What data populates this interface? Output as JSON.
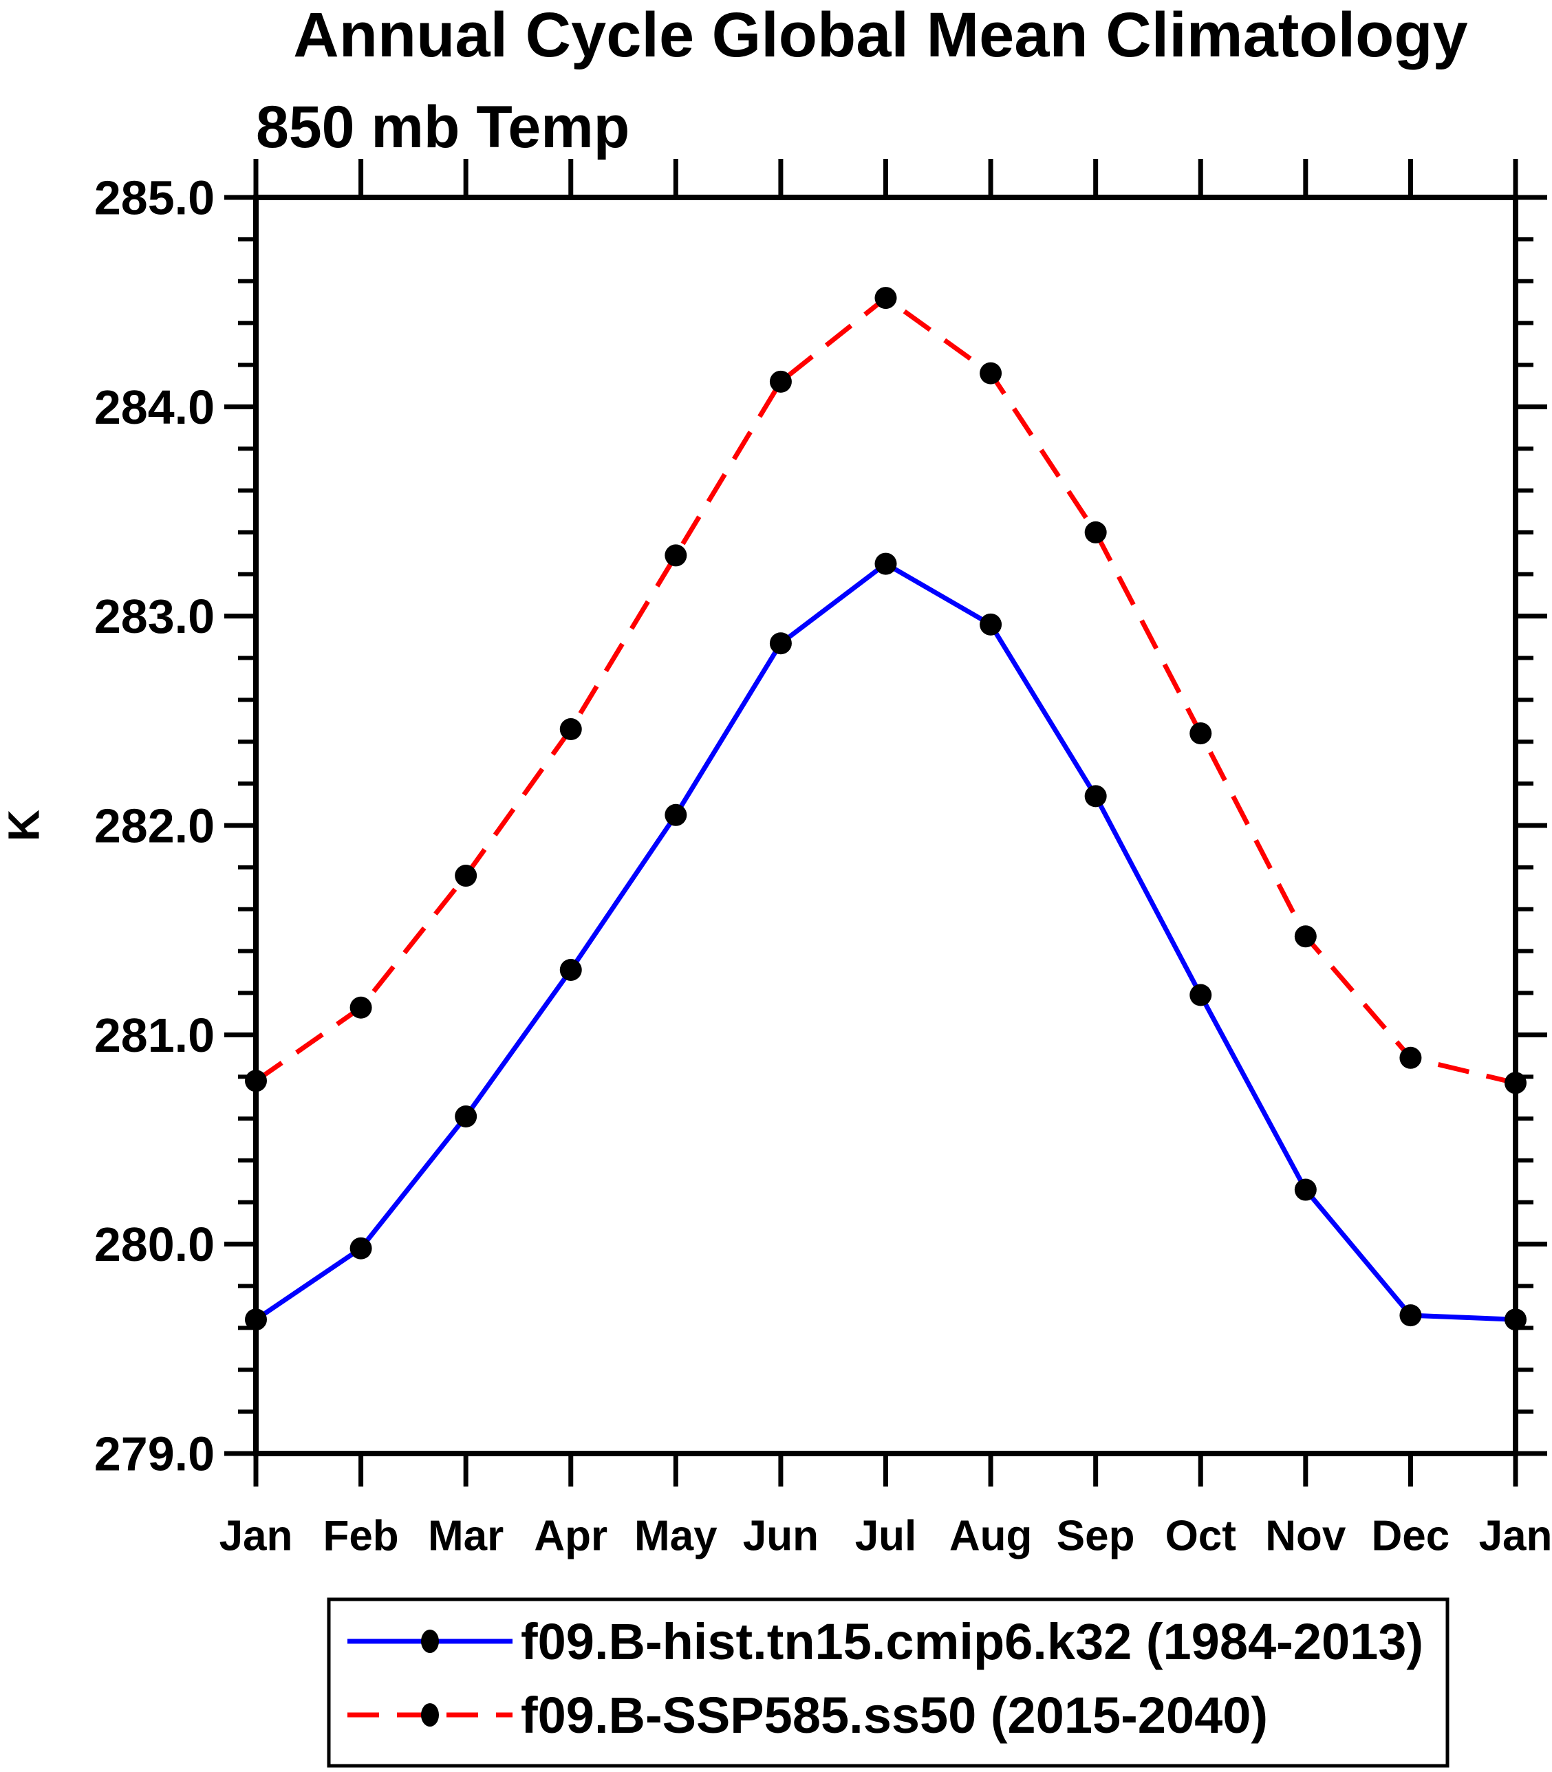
{
  "page": {
    "background": "#ffffff",
    "axis_color": "#000000",
    "marker_color": "#000000"
  },
  "chart_data": {
    "type": "line",
    "title": "Annual Cycle Global Mean Climatology",
    "subtitle": "850 mb Temp",
    "ylabel": "K",
    "xlabel": "",
    "categories": [
      "Jan",
      "Feb",
      "Mar",
      "Apr",
      "May",
      "Jun",
      "Jul",
      "Aug",
      "Sep",
      "Oct",
      "Nov",
      "Dec",
      "Jan"
    ],
    "ylim": [
      279.0,
      285.0
    ],
    "y_major_tick_step": 1.0,
    "y_minor_tick_step": 0.2,
    "y_tick_labels": [
      "285.0",
      "284.0",
      "283.0",
      "282.0",
      "281.0",
      "280.0",
      "279.0"
    ],
    "grid": false,
    "legend_position": "bottom",
    "series": [
      {
        "label": "f09.B-hist.tn15.cmip6.k32 (1984-2013)",
        "color": "#0000ff",
        "line_style": "solid",
        "marker": "filled-circle",
        "marker_color": "#000000",
        "values": [
          279.64,
          279.98,
          280.61,
          281.31,
          282.05,
          282.87,
          283.25,
          282.96,
          282.14,
          281.19,
          280.26,
          279.66,
          279.64
        ]
      },
      {
        "label": "f09.B-SSP585.ss50 (2015-2040)",
        "color": "#ff0000",
        "line_style": "dashed",
        "marker": "filled-circle",
        "marker_color": "#000000",
        "values": [
          280.78,
          281.13,
          281.76,
          282.46,
          283.29,
          284.12,
          284.52,
          284.16,
          283.4,
          282.44,
          281.47,
          280.89,
          280.77
        ]
      }
    ]
  }
}
